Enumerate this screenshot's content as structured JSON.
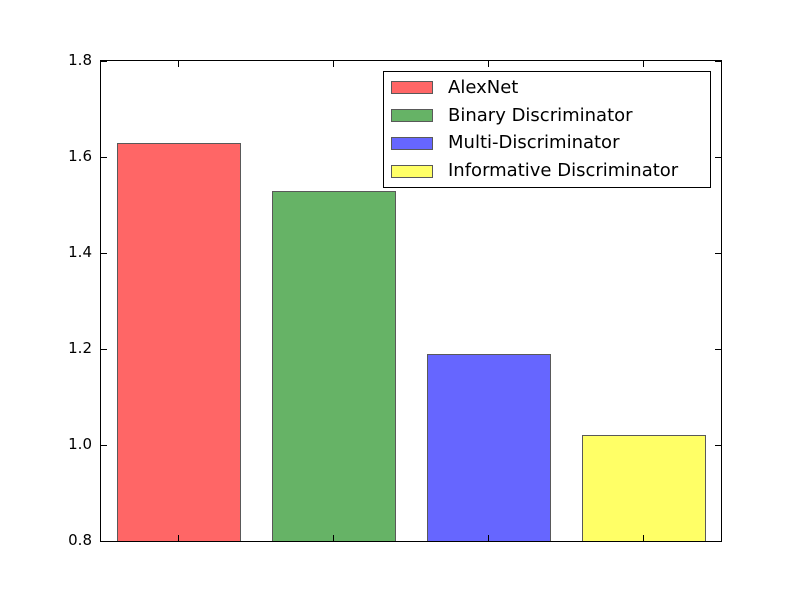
{
  "figure": {
    "background": "#ffffff",
    "axes_edge_color": "#000000"
  },
  "chart_data": {
    "type": "bar",
    "title": "",
    "xlabel": "",
    "ylabel": "",
    "categories": [
      "AlexNet",
      "Binary Discriminator",
      "Multi-Discriminator",
      "Informative Discriminator"
    ],
    "values": [
      1.63,
      1.53,
      1.19,
      1.02
    ],
    "bar_colors": [
      "#ff6666",
      "#66b366",
      "#6666ff",
      "#ffff66"
    ],
    "bar_edge_color": "#595959",
    "bar_width_fraction": 0.8,
    "ylim": [
      0.8,
      1.8
    ],
    "yticks": [
      0.8,
      1.0,
      1.2,
      1.4,
      1.6,
      1.8
    ],
    "ytick_labels": [
      "0.8",
      "1.0",
      "1.2",
      "1.4",
      "1.6",
      "1.8"
    ],
    "xtick_labels": [
      "",
      "",
      "",
      ""
    ],
    "grid": false,
    "legend": {
      "position": "upper right",
      "entries": [
        {
          "label": "AlexNet",
          "color": "#ff6666"
        },
        {
          "label": "Binary Discriminator",
          "color": "#66b366"
        },
        {
          "label": "Multi-Discriminator",
          "color": "#6666ff"
        },
        {
          "label": "Informative Discriminator",
          "color": "#ffff66"
        }
      ]
    }
  }
}
